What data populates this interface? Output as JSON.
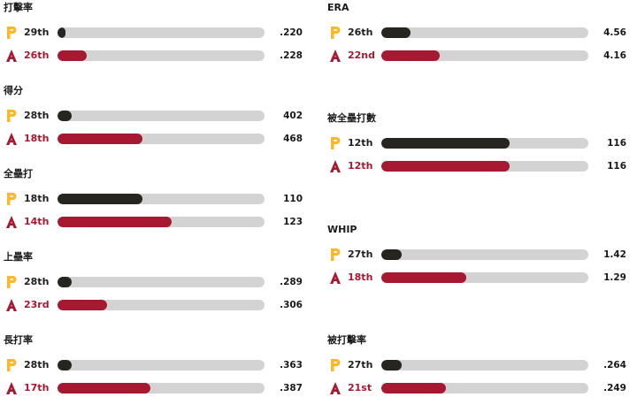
{
  "teams": {
    "pit": {
      "icon": "pirates-p-logo",
      "color": "#27251f",
      "logo_color": "#fdb827"
    },
    "ari": {
      "icon": "diamondbacks-a-logo",
      "color": "#a71930"
    }
  },
  "track_color": "#d3d3d3",
  "left_column": [
    {
      "title": "打擊率",
      "pit": {
        "rank": "29th",
        "value": ".220",
        "fill_fraction": 0.04
      },
      "ari": {
        "rank": "26th",
        "value": ".228",
        "fill_fraction": 0.14
      }
    },
    {
      "title": "得分",
      "pit": {
        "rank": "28th",
        "value": "402",
        "fill_fraction": 0.07
      },
      "ari": {
        "rank": "18th",
        "value": "468",
        "fill_fraction": 0.41
      }
    },
    {
      "title": "全壘打",
      "pit": {
        "rank": "18th",
        "value": "110",
        "fill_fraction": 0.41
      },
      "ari": {
        "rank": "14th",
        "value": "123",
        "fill_fraction": 0.55
      }
    },
    {
      "title": "上壘率",
      "pit": {
        "rank": "28th",
        "value": ".289",
        "fill_fraction": 0.07
      },
      "ari": {
        "rank": "23rd",
        "value": ".306",
        "fill_fraction": 0.24
      }
    },
    {
      "title": "長打率",
      "pit": {
        "rank": "28th",
        "value": ".363",
        "fill_fraction": 0.07
      },
      "ari": {
        "rank": "17th",
        "value": ".387",
        "fill_fraction": 0.45
      }
    }
  ],
  "right_column": [
    {
      "title": "ERA",
      "pit": {
        "rank": "26th",
        "value": "4.56",
        "fill_fraction": 0.14
      },
      "ari": {
        "rank": "22nd",
        "value": "4.16",
        "fill_fraction": 0.28
      }
    },
    {
      "title": "被全壘打數",
      "pit": {
        "rank": "12th",
        "value": "116",
        "fill_fraction": 0.62
      },
      "ari": {
        "rank": "12th",
        "value": "116",
        "fill_fraction": 0.62
      }
    },
    {
      "title": "WHIP",
      "pit": {
        "rank": "27th",
        "value": "1.42",
        "fill_fraction": 0.1
      },
      "ari": {
        "rank": "18th",
        "value": "1.29",
        "fill_fraction": 0.41
      }
    },
    {
      "title": "被打擊率",
      "pit": {
        "rank": "27th",
        "value": ".264",
        "fill_fraction": 0.1
      },
      "ari": {
        "rank": "21st",
        "value": ".249",
        "fill_fraction": 0.31
      }
    }
  ]
}
